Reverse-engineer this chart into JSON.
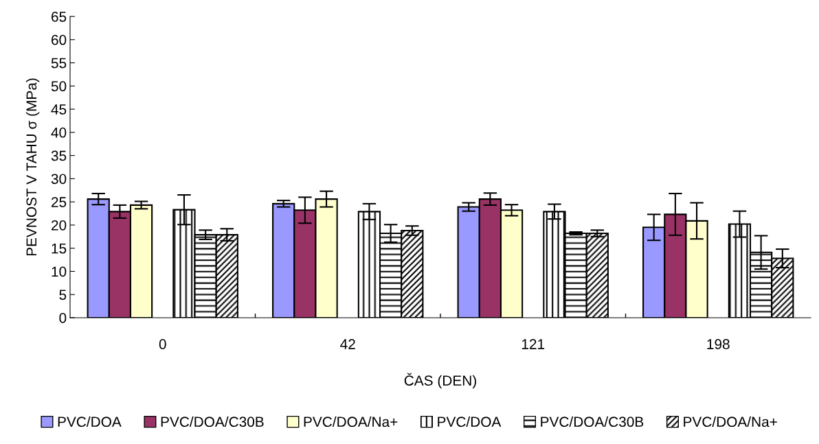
{
  "chart_data": {
    "type": "bar",
    "xlabel": "ČAS (DEN)",
    "ylabel": "PEVNOST V TAHU σ (MPa)",
    "categories": [
      "0",
      "42",
      "121",
      "198"
    ],
    "ylim": [
      0,
      65
    ],
    "yticks": [
      0,
      5,
      10,
      15,
      20,
      25,
      30,
      35,
      40,
      45,
      50,
      55,
      60,
      65
    ],
    "grid": false,
    "legend": "bottom",
    "series": [
      {
        "name": "PVC/DOA",
        "color": "#9999ff",
        "values": [
          25.6,
          24.6,
          23.9,
          19.5
        ],
        "errors": [
          1.2,
          0.7,
          0.9,
          2.8
        ]
      },
      {
        "name": "PVC/DOA/C30B",
        "color": "#993366",
        "values": [
          22.9,
          23.2,
          25.6,
          22.3
        ],
        "errors": [
          1.4,
          2.8,
          1.3,
          4.5
        ]
      },
      {
        "name": "PVC/DOA/Na+",
        "color": "#ffffcc",
        "values": [
          24.3,
          25.6,
          23.2,
          20.9
        ],
        "errors": [
          0.8,
          1.7,
          1.2,
          3.9
        ]
      },
      {
        "name": "PVC/DOA",
        "color": "#000000",
        "values": [
          23.3,
          22.9,
          22.9,
          20.2
        ],
        "errors": [
          3.2,
          1.7,
          1.6,
          2.8
        ]
      },
      {
        "name": "PVC/DOA/C30B",
        "color": "#000000",
        "values": [
          17.9,
          18.2,
          18.2,
          14.1
        ],
        "errors": [
          1.0,
          1.9,
          0.3,
          3.6
        ]
      },
      {
        "name": "PVC/DOA/Na+",
        "color": "#000000",
        "values": [
          17.9,
          18.8,
          18.2,
          12.8
        ],
        "errors": [
          1.3,
          1.0,
          0.7,
          2.0
        ]
      }
    ]
  }
}
